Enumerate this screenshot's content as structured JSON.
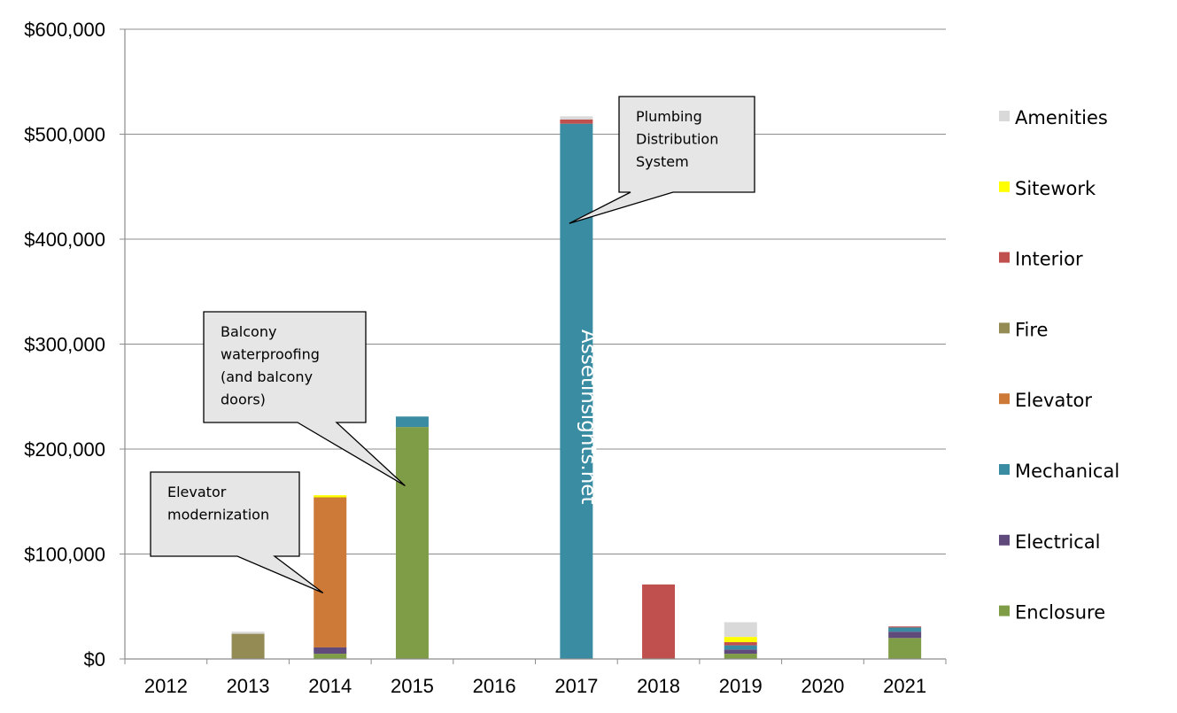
{
  "chart_data": {
    "type": "bar",
    "stacked": true,
    "categories": [
      "2012",
      "2013",
      "2014",
      "2015",
      "2016",
      "2017",
      "2018",
      "2019",
      "2020",
      "2021"
    ],
    "ylim": [
      0,
      600000
    ],
    "y_ticks": [
      "$0",
      "$100,000",
      "$200,000",
      "$300,000",
      "$400,000",
      "$500,000",
      "$600,000"
    ],
    "grid": true,
    "legend_position": "right",
    "series": [
      {
        "name": "Enclosure",
        "color": "#7F9C47",
        "values": [
          0,
          0,
          5000,
          221000,
          0,
          0,
          0,
          5000,
          0,
          20000
        ]
      },
      {
        "name": "Electrical",
        "color": "#604A7B",
        "values": [
          0,
          0,
          6000,
          0,
          0,
          0,
          0,
          4000,
          0,
          6000
        ]
      },
      {
        "name": "Mechanical",
        "color": "#3A8CA3",
        "values": [
          0,
          0,
          0,
          10000,
          0,
          510000,
          0,
          4000,
          0,
          4000
        ]
      },
      {
        "name": "Elevator",
        "color": "#CD7A38",
        "values": [
          0,
          0,
          143000,
          0,
          0,
          0,
          0,
          0,
          0,
          0
        ]
      },
      {
        "name": "Fire",
        "color": "#948A54",
        "values": [
          0,
          24000,
          0,
          0,
          0,
          0,
          0,
          0,
          0,
          0
        ]
      },
      {
        "name": "Interior",
        "color": "#C0504D",
        "values": [
          0,
          0,
          0,
          0,
          0,
          4000,
          71000,
          3000,
          0,
          1000
        ]
      },
      {
        "name": "Sitework",
        "color": "#FFFF00",
        "values": [
          0,
          0,
          2000,
          0,
          0,
          0,
          0,
          5000,
          0,
          0
        ]
      },
      {
        "name": "Amenities",
        "color": "#D9D9D9",
        "values": [
          0,
          2000,
          0,
          0,
          0,
          3000,
          0,
          14000,
          0,
          0
        ]
      }
    ],
    "annotations": [
      {
        "lines": [
          "Elevator",
          "modernization"
        ],
        "category": "2014",
        "value": 63000
      },
      {
        "lines": [
          "Balcony",
          "waterproofing",
          "(and balcony",
          "doors)"
        ],
        "category": "2015",
        "value": 165000
      },
      {
        "lines": [
          "Plumbing",
          "Distribution",
          "System"
        ],
        "category": "2017",
        "value": 415000
      }
    ],
    "watermark": "Assetinsights.net"
  }
}
